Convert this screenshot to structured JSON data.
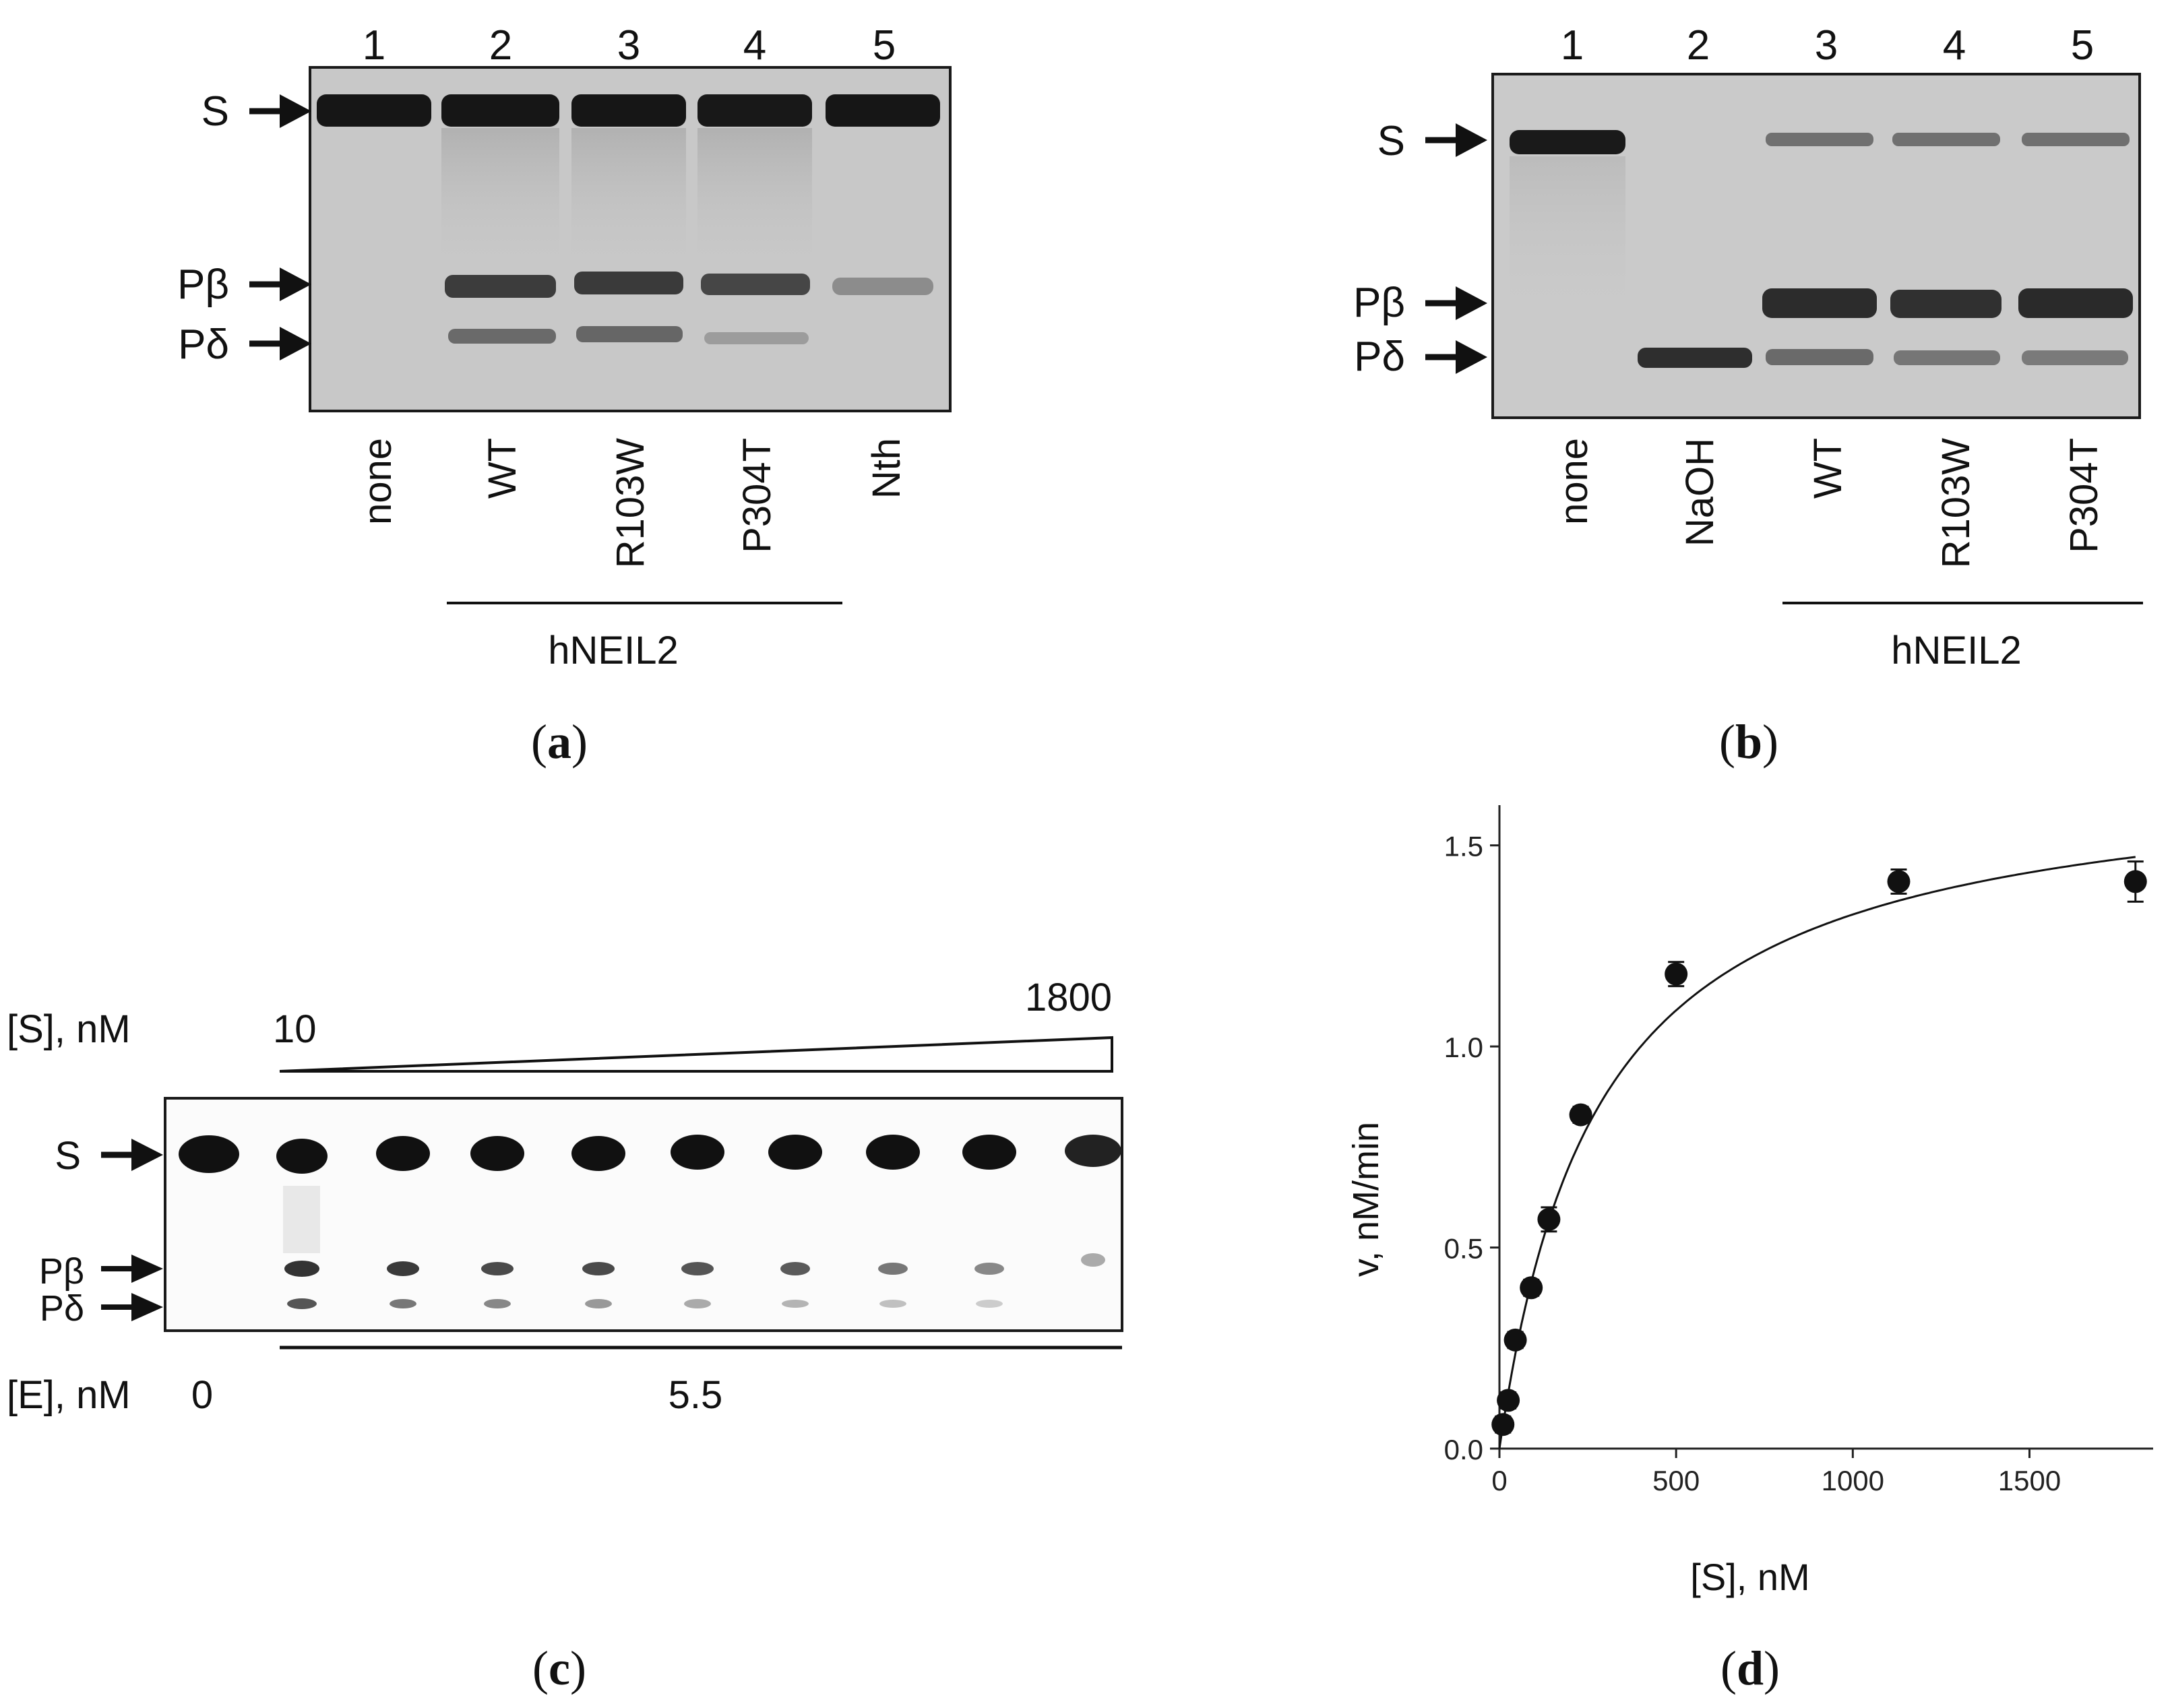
{
  "panel_a": {
    "lane_numbers": [
      "1",
      "2",
      "3",
      "4",
      "5"
    ],
    "band_labels": [
      "S",
      "Pβ",
      "Pδ"
    ],
    "lane_labels": [
      "none",
      "WT",
      "R103W",
      "P304T",
      "Nth"
    ],
    "group_label": "hNEIL2",
    "caption_letter": "a"
  },
  "panel_b": {
    "lane_numbers": [
      "1",
      "2",
      "3",
      "4",
      "5"
    ],
    "band_labels": [
      "S",
      "Pβ",
      "Pδ"
    ],
    "lane_labels": [
      "none",
      "NaOH",
      "WT",
      "R103W",
      "P304T"
    ],
    "group_label": "hNEIL2",
    "caption_letter": "b"
  },
  "panel_c": {
    "substrate_label": "[S], nM",
    "substrate_min": "10",
    "substrate_max": "1800",
    "band_labels": [
      "S",
      "Pβ",
      "Pδ"
    ],
    "enzyme_label": "[E], nM",
    "enzyme_zero": "0",
    "enzyme_value": "5.5",
    "caption_letter": "c"
  },
  "panel_d": {
    "caption_letter": "d"
  },
  "chart_data": {
    "type": "scatter",
    "xlabel": "[S], nM",
    "ylabel": "v, nM/min",
    "xlim": [
      0,
      1850
    ],
    "ylim": [
      0,
      1.6
    ],
    "xticks": [
      "0",
      "500",
      "1000",
      "1500"
    ],
    "yticks": [
      "0.0",
      "0.5",
      "1.0",
      "1.5"
    ],
    "grid": false,
    "series": [
      {
        "x": [
          10,
          25,
          45,
          90,
          140,
          230,
          500,
          1130,
          1800
        ],
        "y": [
          0.06,
          0.12,
          0.27,
          0.4,
          0.57,
          0.83,
          1.18,
          1.41,
          1.41
        ],
        "error": [
          0.02,
          0.02,
          0.02,
          0.02,
          0.03,
          0.02,
          0.03,
          0.03,
          0.05
        ]
      }
    ],
    "fit": {
      "type": "michaelis-menten",
      "vmax": 1.7,
      "km": 280
    },
    "colors": {
      "points": "#111111",
      "axis": "#222222"
    }
  }
}
